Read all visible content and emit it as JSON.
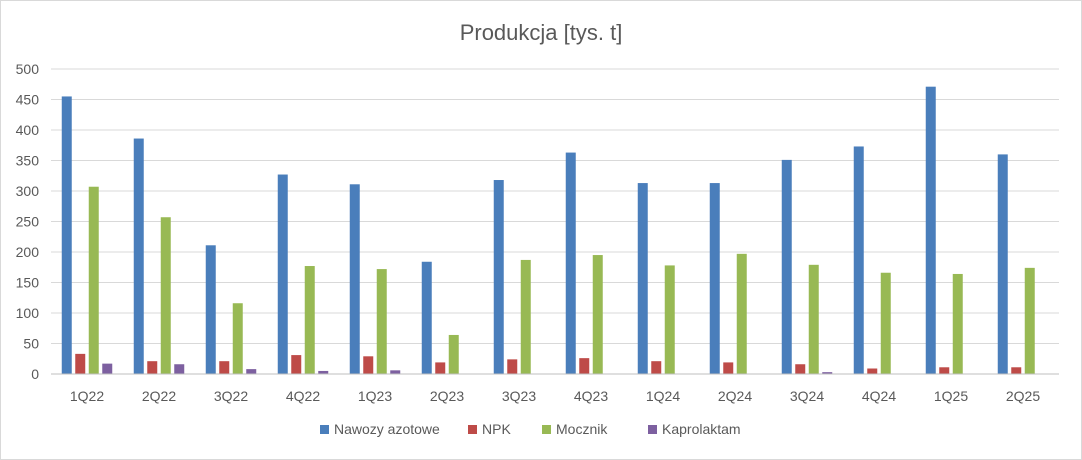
{
  "chart_data": {
    "type": "bar",
    "title": "Produkcja [tys. t]",
    "xlabel": "",
    "ylabel": "",
    "ylim": [
      0,
      500
    ],
    "yticks": [
      "0",
      "50",
      "100",
      "150",
      "200",
      "250",
      "300",
      "350",
      "400",
      "450",
      "500"
    ],
    "grid": true,
    "legend_position": "bottom",
    "categories": [
      "1Q22",
      "2Q22",
      "3Q22",
      "4Q22",
      "1Q23",
      "2Q23",
      "3Q23",
      "4Q23",
      "1Q24",
      "2Q24",
      "3Q24",
      "4Q24",
      "1Q25",
      "2Q25"
    ],
    "series": [
      {
        "name": "Nawozy azotowe",
        "color": "#4a7ebb",
        "values": [
          455,
          386,
          211,
          327,
          311,
          184,
          318,
          363,
          313,
          313,
          351,
          373,
          471,
          360
        ]
      },
      {
        "name": "NPK",
        "color": "#be4b48",
        "values": [
          33,
          21,
          21,
          31,
          29,
          19,
          24,
          26,
          21,
          19,
          16,
          9,
          11,
          11
        ]
      },
      {
        "name": "Mocznik",
        "color": "#98b954",
        "values": [
          307,
          257,
          116,
          177,
          172,
          64,
          187,
          195,
          178,
          197,
          179,
          166,
          164,
          174
        ]
      },
      {
        "name": "Kaprolaktam",
        "color": "#7d60a0",
        "values": [
          17,
          16,
          8,
          5,
          6,
          0,
          0,
          0,
          0,
          0,
          3,
          0,
          0,
          0
        ]
      }
    ]
  }
}
